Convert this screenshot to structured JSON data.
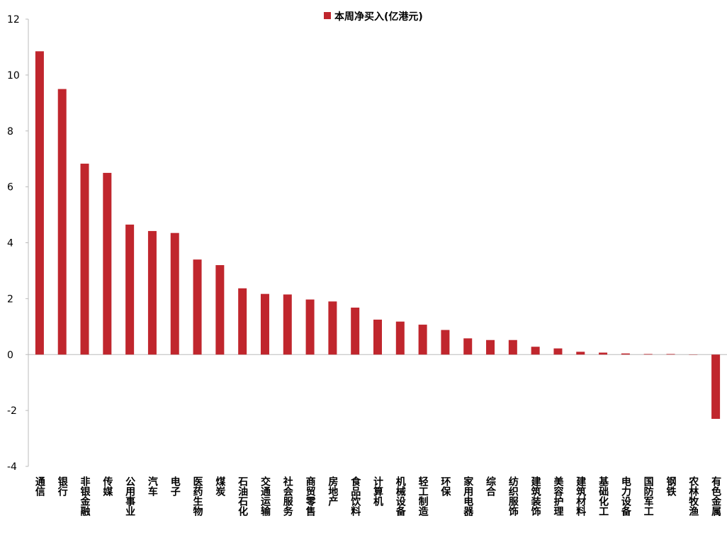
{
  "chart_data": {
    "type": "bar",
    "categories": [
      "通信",
      "银行",
      "非银金融",
      "传媒",
      "公用事业",
      "汽车",
      "电子",
      "医药生物",
      "煤炭",
      "石油石化",
      "交通运输",
      "社会服务",
      "商贸零售",
      "房地产",
      "食品饮料",
      "计算机",
      "机械设备",
      "轻工制造",
      "环保",
      "家用电器",
      "综合",
      "纺织服饰",
      "建筑装饰",
      "美容护理",
      "建筑材料",
      "基础化工",
      "电力设备",
      "国防军工",
      "钢铁",
      "农林牧渔",
      "有色金属"
    ],
    "series": [
      {
        "name": "本周净买入(亿港元)",
        "color": "#c0262d",
        "values": [
          10.85,
          9.5,
          6.83,
          6.5,
          4.65,
          4.42,
          4.35,
          3.4,
          3.2,
          2.37,
          2.17,
          2.15,
          1.97,
          1.9,
          1.68,
          1.25,
          1.18,
          1.07,
          0.88,
          0.58,
          0.52,
          0.52,
          0.28,
          0.22,
          0.1,
          0.07,
          0.04,
          0.02,
          0.02,
          -0.01,
          -2.3
        ]
      }
    ],
    "ylim": [
      -4,
      12
    ],
    "yticks": [
      -4,
      -2,
      0,
      2,
      4,
      6,
      8,
      10,
      12
    ]
  }
}
